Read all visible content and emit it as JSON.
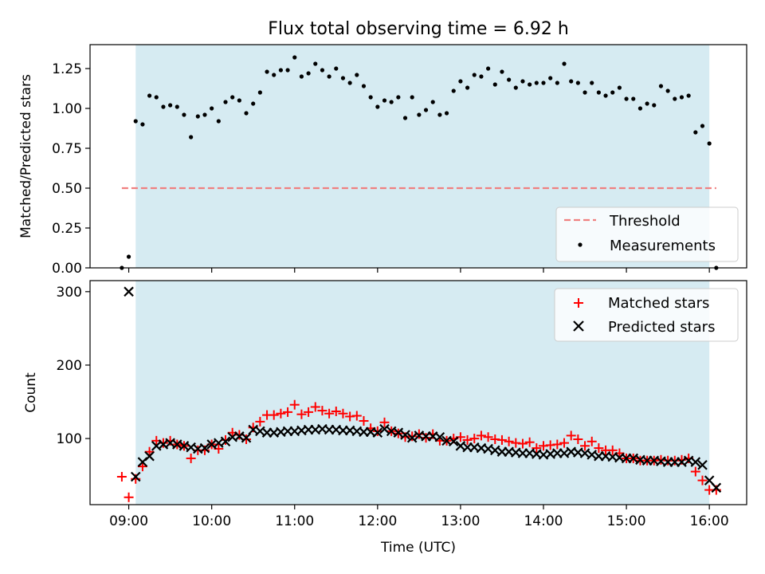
{
  "chart_data": [
    {
      "type": "scatter",
      "title": "Flux total observing time = 6.92 h",
      "ylabel": "Matched/Predicted stars",
      "xlabel": "",
      "xlim": [
        "08:32",
        "16:27"
      ],
      "ylim": [
        0,
        1.4
      ],
      "yticks": [
        "0.00",
        "0.25",
        "0.50",
        "0.75",
        "1.00",
        "1.25"
      ],
      "shaded_span": [
        "09:05",
        "16:00"
      ],
      "legend_position": "lower-right",
      "threshold": {
        "name": "Threshold",
        "value": 0.5,
        "x": [
          "08:55",
          "16:05"
        ]
      },
      "series": [
        {
          "name": "Measurements",
          "x": [
            "08:55",
            "09:00",
            "09:05",
            "09:10",
            "09:15",
            "09:20",
            "09:25",
            "09:30",
            "09:35",
            "09:40",
            "09:45",
            "09:50",
            "09:55",
            "10:00",
            "10:05",
            "10:10",
            "10:15",
            "10:20",
            "10:25",
            "10:30",
            "10:35",
            "10:40",
            "10:45",
            "10:50",
            "10:55",
            "11:00",
            "11:05",
            "11:10",
            "11:15",
            "11:20",
            "11:25",
            "11:30",
            "11:35",
            "11:40",
            "11:45",
            "11:50",
            "11:55",
            "12:00",
            "12:05",
            "12:10",
            "12:15",
            "12:20",
            "12:25",
            "12:30",
            "12:35",
            "12:40",
            "12:45",
            "12:50",
            "12:55",
            "13:00",
            "13:05",
            "13:10",
            "13:15",
            "13:20",
            "13:25",
            "13:30",
            "13:35",
            "13:40",
            "13:45",
            "13:50",
            "13:55",
            "14:00",
            "14:05",
            "14:10",
            "14:15",
            "14:20",
            "14:25",
            "14:30",
            "14:35",
            "14:40",
            "14:45",
            "14:50",
            "14:55",
            "15:00",
            "15:05",
            "15:10",
            "15:15",
            "15:20",
            "15:25",
            "15:30",
            "15:35",
            "15:40",
            "15:45",
            "15:50",
            "15:55",
            "16:00",
            "16:05"
          ],
          "y": [
            0.0,
            0.07,
            0.92,
            0.9,
            1.08,
            1.07,
            1.01,
            1.02,
            1.01,
            0.96,
            0.82,
            0.95,
            0.96,
            1.0,
            0.92,
            1.04,
            1.07,
            1.05,
            0.97,
            1.03,
            1.1,
            1.23,
            1.21,
            1.24,
            1.24,
            1.32,
            1.2,
            1.22,
            1.28,
            1.24,
            1.2,
            1.25,
            1.19,
            1.16,
            1.21,
            1.14,
            1.07,
            1.01,
            1.05,
            1.04,
            1.07,
            0.94,
            1.07,
            0.96,
            0.99,
            1.04,
            0.96,
            0.97,
            1.11,
            1.17,
            1.13,
            1.21,
            1.2,
            1.25,
            1.15,
            1.23,
            1.18,
            1.13,
            1.17,
            1.15,
            1.16,
            1.16,
            1.19,
            1.16,
            1.28,
            1.17,
            1.16,
            1.1,
            1.16,
            1.1,
            1.08,
            1.1,
            1.13,
            1.06,
            1.06,
            1.0,
            1.03,
            1.02,
            1.14,
            1.11,
            1.06,
            1.07,
            1.08,
            0.85,
            0.89,
            0.78,
            0.0
          ]
        }
      ]
    },
    {
      "type": "scatter",
      "title": "",
      "xlabel": "Time (UTC)",
      "ylabel": "Count",
      "xlim": [
        "08:32",
        "16:27"
      ],
      "ylim": [
        10,
        315
      ],
      "xticks": [
        "09:00",
        "10:00",
        "11:00",
        "12:00",
        "13:00",
        "14:00",
        "15:00",
        "16:00"
      ],
      "yticks": [
        "100",
        "200",
        "300"
      ],
      "shaded_span": [
        "09:05",
        "16:00"
      ],
      "legend_position": "upper-right",
      "series": [
        {
          "name": "Matched stars",
          "marker": "+",
          "color": "#ff0000",
          "x": [
            "08:55",
            "09:00",
            "09:05",
            "09:10",
            "09:15",
            "09:20",
            "09:25",
            "09:30",
            "09:35",
            "09:40",
            "09:45",
            "09:50",
            "09:55",
            "10:00",
            "10:05",
            "10:10",
            "10:15",
            "10:20",
            "10:25",
            "10:30",
            "10:35",
            "10:40",
            "10:45",
            "10:50",
            "10:55",
            "11:00",
            "11:05",
            "11:10",
            "11:15",
            "11:20",
            "11:25",
            "11:30",
            "11:35",
            "11:40",
            "11:45",
            "11:50",
            "11:55",
            "12:00",
            "12:05",
            "12:10",
            "12:15",
            "12:20",
            "12:25",
            "12:30",
            "12:35",
            "12:40",
            "12:45",
            "12:50",
            "12:55",
            "13:00",
            "13:05",
            "13:10",
            "13:15",
            "13:20",
            "13:25",
            "13:30",
            "13:35",
            "13:40",
            "13:45",
            "13:50",
            "13:55",
            "14:00",
            "14:05",
            "14:10",
            "14:15",
            "14:20",
            "14:25",
            "14:30",
            "14:35",
            "14:40",
            "14:45",
            "14:50",
            "14:55",
            "15:00",
            "15:05",
            "15:10",
            "15:15",
            "15:20",
            "15:25",
            "15:30",
            "15:35",
            "15:40",
            "15:45",
            "15:50",
            "15:55",
            "16:00",
            "16:05"
          ],
          "y": [
            48,
            20,
            45,
            62,
            82,
            97,
            94,
            97,
            92,
            90,
            73,
            84,
            84,
            92,
            86,
            98,
            108,
            105,
            99,
            115,
            123,
            132,
            132,
            134,
            136,
            146,
            133,
            136,
            143,
            138,
            134,
            137,
            134,
            130,
            131,
            124,
            114,
            110,
            122,
            110,
            107,
            102,
            103,
            106,
            101,
            106,
            97,
            97,
            100,
            102,
            98,
            100,
            104,
            102,
            99,
            98,
            96,
            94,
            93,
            95,
            87,
            90,
            91,
            92,
            94,
            104,
            99,
            90,
            96,
            87,
            84,
            84,
            80,
            73,
            73,
            70,
            70,
            70,
            71,
            70,
            70,
            71,
            73,
            55,
            43,
            30,
            30
          ]
        },
        {
          "name": "Predicted stars",
          "marker": "x",
          "color": "#000000",
          "x": [
            "09:00",
            "09:05",
            "09:10",
            "09:15",
            "09:20",
            "09:25",
            "09:30",
            "09:35",
            "09:40",
            "09:45",
            "09:50",
            "09:55",
            "10:00",
            "10:05",
            "10:10",
            "10:15",
            "10:20",
            "10:25",
            "10:30",
            "10:35",
            "10:40",
            "10:45",
            "10:50",
            "10:55",
            "11:00",
            "11:05",
            "11:10",
            "11:15",
            "11:20",
            "11:25",
            "11:30",
            "11:35",
            "11:40",
            "11:45",
            "11:50",
            "11:55",
            "12:00",
            "12:05",
            "12:10",
            "12:15",
            "12:20",
            "12:25",
            "12:30",
            "12:35",
            "12:40",
            "12:45",
            "12:50",
            "12:55",
            "13:00",
            "13:05",
            "13:10",
            "13:15",
            "13:20",
            "13:25",
            "13:30",
            "13:35",
            "13:40",
            "13:45",
            "13:50",
            "13:55",
            "14:00",
            "14:05",
            "14:10",
            "14:15",
            "14:20",
            "14:25",
            "14:30",
            "14:35",
            "14:40",
            "14:45",
            "14:50",
            "14:55",
            "15:00",
            "15:05",
            "15:10",
            "15:15",
            "15:20",
            "15:25",
            "15:30",
            "15:35",
            "15:40",
            "15:45",
            "15:50",
            "15:55",
            "16:00",
            "16:05"
          ],
          "y": [
            300,
            48,
            68,
            76,
            90,
            92,
            94,
            92,
            90,
            88,
            86,
            87,
            92,
            94,
            96,
            102,
            103,
            101,
            112,
            110,
            108,
            108,
            109,
            110,
            110,
            111,
            112,
            112,
            113,
            112,
            112,
            111,
            111,
            110,
            109,
            109,
            108,
            113,
            110,
            108,
            105,
            101,
            104,
            103,
            103,
            102,
            97,
            96,
            90,
            88,
            88,
            87,
            86,
            84,
            82,
            82,
            81,
            80,
            80,
            79,
            78,
            79,
            80,
            80,
            82,
            81,
            80,
            78,
            76,
            76,
            75,
            74,
            73,
            73,
            71,
            70,
            70,
            69,
            68,
            68,
            68,
            70,
            68,
            64,
            43,
            33
          ]
        }
      ]
    }
  ]
}
